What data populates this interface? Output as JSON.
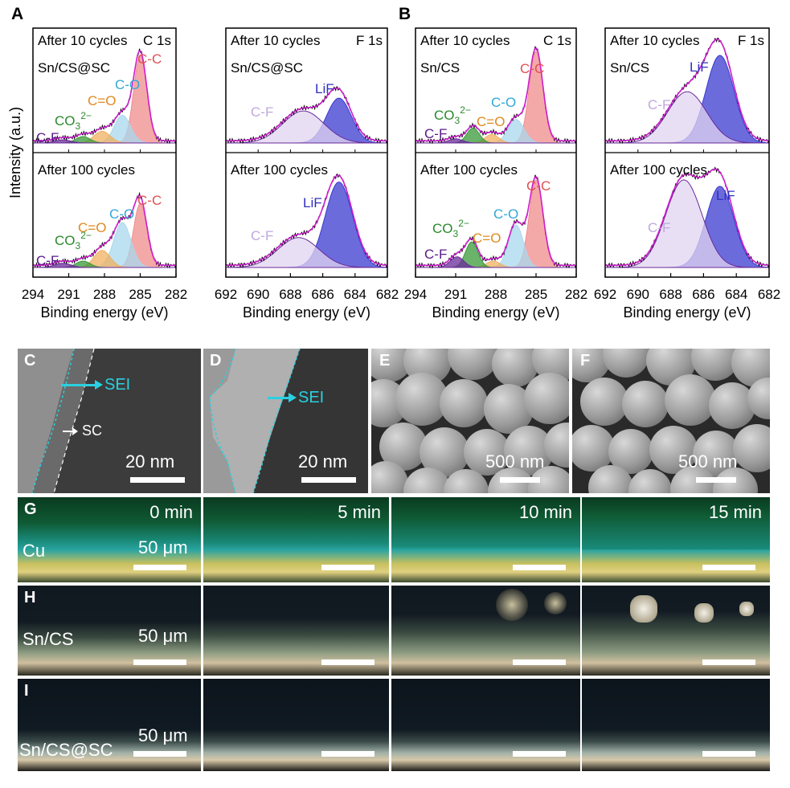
{
  "xps": {
    "ylabel": "Intensity (a.u.)",
    "xlabel": "Binding energy (eV)",
    "panel_A": "A",
    "panel_B": "B",
    "c1s_ticks": [
      "294",
      "291",
      "288",
      "285",
      "282"
    ],
    "f1s_ticks": [
      "692",
      "690",
      "688",
      "686",
      "684",
      "682"
    ],
    "after10": "After 10 cycles",
    "after100": "After 100 cycles",
    "c1s": "C 1s",
    "f1s": "F 1s",
    "sample_scsc": "Sn/CS@SC",
    "sample_sncs": "Sn/CS",
    "labels": {
      "cc": "C-C",
      "co": "C-O",
      "ceo": "C=O",
      "co3": "CO",
      "co3_sub": "3",
      "co3_sup": "2−",
      "cf": "C-F",
      "lif": "LiF"
    },
    "colors": {
      "cc": "#f08c8c",
      "co": "#a8d8ee",
      "ceo": "#f0b060",
      "co3": "#3a9a3a",
      "cf": "#6a2a9a",
      "cf_fill": "#e0d4f0",
      "lif": "#3a3ad0",
      "envelope": "#d020d0",
      "cc_text": "#e05050",
      "co_text": "#30a8d8",
      "ceo_text": "#e08a20",
      "co3_text": "#2a8a2a",
      "cf_text": "#5a1a8a",
      "cf_f1s_text": "#c0a8e0",
      "lif_text": "#3030c0"
    }
  },
  "chart_data": [
    {
      "type": "line",
      "title": "A — Sn/CS@SC C 1s / F 1s XPS",
      "panels": [
        {
          "region": "C 1s",
          "state": "After 10 cycles",
          "xlim": [
            294,
            282
          ],
          "components": [
            {
              "name": "C-C",
              "center": 285.0,
              "height": 0.82,
              "fwhm": 1.3
            },
            {
              "name": "C-O",
              "center": 286.5,
              "height": 0.26,
              "fwhm": 1.6
            },
            {
              "name": "C=O",
              "center": 288.2,
              "height": 0.11,
              "fwhm": 1.6
            },
            {
              "name": "CO3",
              "center": 289.8,
              "height": 0.06,
              "fwhm": 1.4
            },
            {
              "name": "C-F",
              "center": 291.5,
              "height": 0.03,
              "fwhm": 1.6
            }
          ]
        },
        {
          "region": "C 1s",
          "state": "After 100 cycles",
          "xlim": [
            294,
            282
          ],
          "components": [
            {
              "name": "C-C",
              "center": 285.0,
              "height": 0.6,
              "fwhm": 1.3
            },
            {
              "name": "C-O",
              "center": 286.5,
              "height": 0.42,
              "fwhm": 1.7
            },
            {
              "name": "C=O",
              "center": 288.2,
              "height": 0.16,
              "fwhm": 1.6
            },
            {
              "name": "CO3",
              "center": 289.8,
              "height": 0.06,
              "fwhm": 1.4
            },
            {
              "name": "C-F",
              "center": 291.5,
              "height": 0.04,
              "fwhm": 1.6
            }
          ]
        },
        {
          "region": "F 1s",
          "state": "After 10 cycles",
          "xlim": [
            692,
            682
          ],
          "components": [
            {
              "name": "LiF",
              "center": 685.0,
              "height": 0.42,
              "fwhm": 1.8
            },
            {
              "name": "C-F",
              "center": 687.2,
              "height": 0.3,
              "fwhm": 3.0
            }
          ]
        },
        {
          "region": "F 1s",
          "state": "After 100 cycles",
          "xlim": [
            692,
            682
          ],
          "components": [
            {
              "name": "LiF",
              "center": 685.0,
              "height": 0.8,
              "fwhm": 2.0
            },
            {
              "name": "C-F",
              "center": 687.5,
              "height": 0.28,
              "fwhm": 3.0
            }
          ]
        }
      ]
    },
    {
      "type": "line",
      "title": "B — Sn/CS C 1s / F 1s XPS",
      "panels": [
        {
          "region": "C 1s",
          "state": "After 10 cycles",
          "xlim": [
            294,
            282
          ],
          "components": [
            {
              "name": "C-C",
              "center": 285.0,
              "height": 0.86,
              "fwhm": 1.2
            },
            {
              "name": "C-O",
              "center": 286.5,
              "height": 0.22,
              "fwhm": 1.4
            },
            {
              "name": "C=O",
              "center": 288.3,
              "height": 0.08,
              "fwhm": 1.2
            },
            {
              "name": "CO3",
              "center": 289.7,
              "height": 0.14,
              "fwhm": 1.1
            },
            {
              "name": "C-F",
              "center": 291.0,
              "height": 0.04,
              "fwhm": 1.2
            }
          ]
        },
        {
          "region": "C 1s",
          "state": "After 100 cycles",
          "xlim": [
            294,
            282
          ],
          "components": [
            {
              "name": "C-C",
              "center": 285.0,
              "height": 0.82,
              "fwhm": 1.2
            },
            {
              "name": "C-O",
              "center": 286.5,
              "height": 0.4,
              "fwhm": 1.3
            },
            {
              "name": "C=O",
              "center": 288.2,
              "height": 0.06,
              "fwhm": 1.2
            },
            {
              "name": "CO3",
              "center": 289.8,
              "height": 0.24,
              "fwhm": 1.1
            },
            {
              "name": "C-F",
              "center": 290.9,
              "height": 0.1,
              "fwhm": 1.2
            }
          ]
        },
        {
          "region": "F 1s",
          "state": "After 10 cycles",
          "xlim": [
            692,
            682
          ],
          "components": [
            {
              "name": "LiF",
              "center": 685.0,
              "height": 0.82,
              "fwhm": 2.0
            },
            {
              "name": "C-F",
              "center": 687.0,
              "height": 0.48,
              "fwhm": 2.8
            }
          ]
        },
        {
          "region": "F 1s",
          "state": "After 100 cycles",
          "xlim": [
            692,
            682
          ],
          "components": [
            {
              "name": "LiF",
              "center": 685.0,
              "height": 0.76,
              "fwhm": 2.0
            },
            {
              "name": "C-F",
              "center": 687.2,
              "height": 0.82,
              "fwhm": 2.6
            }
          ]
        }
      ]
    }
  ],
  "tem": {
    "C": "C",
    "D": "D",
    "sei": "SEI",
    "sc": "SC",
    "scale": "20 nm"
  },
  "sem": {
    "E": "E",
    "F": "F",
    "scale": "500 nm"
  },
  "optical": {
    "G": "G",
    "H": "H",
    "I": "I",
    "times": [
      "0 min",
      "5 min",
      "10 min",
      "15 min"
    ],
    "cu": "Cu",
    "sncs": "Sn/CS",
    "scsc": "Sn/CS@SC",
    "scale": "50 μm"
  }
}
